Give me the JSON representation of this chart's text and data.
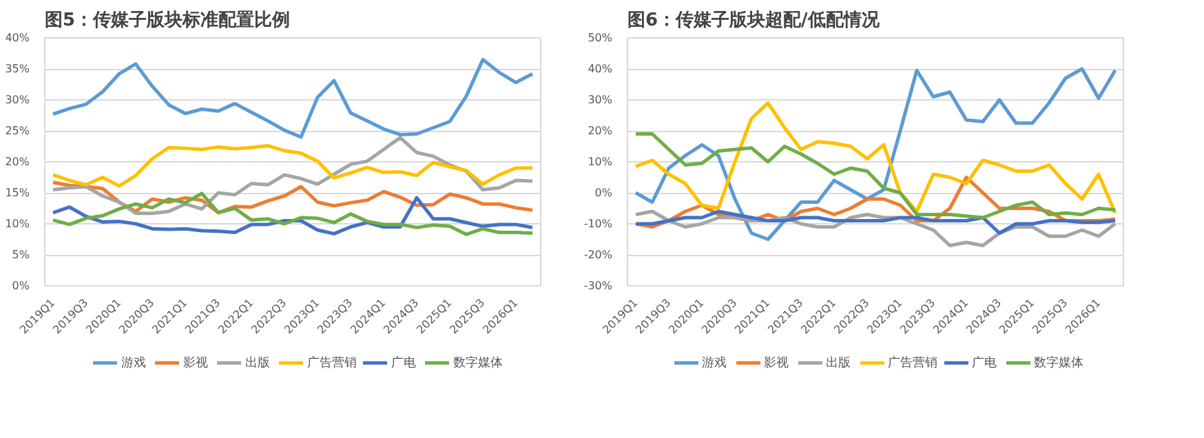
{
  "chart_data": [
    {
      "type": "line",
      "title": "图5：传媒子版块标准配置比例",
      "categories": [
        "2019Q1",
        null,
        "2019Q3",
        null,
        "2020Q1",
        null,
        "2020Q3",
        null,
        "2021Q1",
        null,
        "2021Q3",
        null,
        "2022Q1",
        null,
        "2022Q3",
        null,
        "2023Q1",
        null,
        "2023Q3",
        null,
        "2024Q1",
        null,
        "2024Q3",
        null,
        "2025Q1",
        null,
        "2025Q3",
        null,
        "2026Q1",
        null
      ],
      "series": [
        {
          "name": "游戏",
          "color": "#5b9bd5",
          "values": [
            27.7,
            28.6,
            29.3,
            31.3,
            34.2,
            35.8,
            32.2,
            29.2,
            27.8,
            28.5,
            28.2,
            29.4,
            28.0,
            26.6,
            25.1,
            24.0,
            30.4,
            33.1,
            27.9,
            26.6,
            25.3,
            24.4,
            24.5,
            25.5,
            26.5,
            30.6,
            36.5,
            34.4,
            32.8,
            34.2
          ]
        },
        {
          "name": "影视",
          "color": "#ed7d31",
          "values": [
            16.7,
            16.2,
            16.0,
            15.7,
            13.5,
            12.0,
            14.0,
            13.5,
            14.2,
            13.8,
            11.8,
            12.8,
            12.7,
            13.7,
            14.5,
            16.0,
            13.5,
            12.9,
            13.4,
            13.8,
            15.2,
            14.3,
            13.0,
            13.1,
            14.8,
            14.2,
            13.2,
            13.2,
            12.6,
            12.2
          ]
        },
        {
          "name": "出版",
          "color": "#a5a5a5",
          "values": [
            15.5,
            15.8,
            16.0,
            14.5,
            13.5,
            11.7,
            11.7,
            12.0,
            13.2,
            12.4,
            15.0,
            14.7,
            16.5,
            16.3,
            17.9,
            17.3,
            16.4,
            18.0,
            19.6,
            20.1,
            22.0,
            23.9,
            21.5,
            20.9,
            19.5,
            18.5,
            15.5,
            15.8,
            17.0,
            16.9
          ]
        },
        {
          "name": "广告营销",
          "color": "#ffc000",
          "values": [
            17.9,
            17.0,
            16.3,
            17.5,
            16.1,
            17.8,
            20.5,
            22.3,
            22.2,
            22.0,
            22.4,
            22.1,
            22.3,
            22.6,
            21.8,
            21.4,
            20.1,
            17.4,
            18.2,
            19.1,
            18.3,
            18.4,
            17.8,
            19.9,
            19.2,
            18.6,
            16.4,
            17.9,
            19.0,
            19.0
          ]
        },
        {
          "name": "广电",
          "color": "#4472c4",
          "values": [
            11.8,
            12.7,
            11.2,
            10.3,
            10.4,
            10.0,
            9.2,
            9.1,
            9.2,
            8.9,
            8.8,
            8.6,
            9.9,
            9.9,
            10.5,
            10.5,
            9.0,
            8.4,
            9.5,
            10.2,
            9.5,
            9.5,
            14.2,
            10.8,
            10.8,
            10.2,
            9.6,
            9.9,
            9.9,
            9.4
          ]
        },
        {
          "name": "数字媒体",
          "color": "#70ad47",
          "values": [
            10.6,
            9.9,
            10.9,
            11.3,
            12.4,
            13.2,
            12.6,
            14.0,
            13.4,
            14.9,
            11.8,
            12.5,
            10.6,
            10.8,
            10.0,
            11.0,
            10.9,
            10.2,
            11.6,
            10.4,
            9.9,
            9.9,
            9.4,
            9.8,
            9.6,
            8.3,
            9.2,
            8.6,
            8.6,
            8.5
          ]
        }
      ],
      "ylim": [
        0,
        40
      ],
      "yticks": [
        {
          "value": 0,
          "label": "0%"
        },
        {
          "value": 5,
          "label": "5%"
        },
        {
          "value": 10,
          "label": "10%"
        },
        {
          "value": 15,
          "label": "15%"
        },
        {
          "value": 20,
          "label": "20%"
        },
        {
          "value": 25,
          "label": "25%"
        },
        {
          "value": 30,
          "label": "30%"
        },
        {
          "value": 35,
          "label": "35%"
        },
        {
          "value": 40,
          "label": "40%"
        }
      ],
      "grid": "y",
      "legend": "bottom"
    },
    {
      "type": "line",
      "title": "图6：传媒子版块超配/低配情况",
      "categories": [
        "2019Q1",
        null,
        "2019Q3",
        null,
        "2020Q1",
        null,
        "2020Q3",
        null,
        "2021Q1",
        null,
        "2021Q3",
        null,
        "2022Q1",
        null,
        "2022Q3",
        null,
        "2023Q1",
        null,
        "2023Q3",
        null,
        "2024Q1",
        null,
        "2024Q3",
        null,
        "2025Q1",
        null,
        "2025Q3",
        null,
        "2026Q1",
        null
      ],
      "series": [
        {
          "name": "游戏",
          "color": "#5b9bd5",
          "values": [
            0,
            -3,
            8,
            12,
            15.5,
            12,
            -2,
            -13,
            -15,
            -9,
            -3,
            -3,
            4,
            1,
            -2,
            1,
            20,
            39.5,
            31,
            32.5,
            23.5,
            23,
            30,
            22.5,
            22.5,
            29,
            37,
            40,
            30.5,
            39.5
          ]
        },
        {
          "name": "影视",
          "color": "#ed7d31",
          "values": [
            -10,
            -11,
            -9,
            -6,
            -4,
            -7,
            -8,
            -9,
            -7,
            -9,
            -6,
            -5,
            -7,
            -5,
            -2,
            -2,
            -4,
            -9,
            -9,
            -5,
            5,
            0,
            -5,
            -5,
            -5,
            -6,
            -9,
            -9,
            -9,
            -8.5
          ]
        },
        {
          "name": "出版",
          "color": "#a5a5a5",
          "values": [
            -7,
            -6,
            -9,
            -11,
            -10,
            -8,
            -8,
            -9,
            -9,
            -8,
            -10,
            -11,
            -11,
            -8,
            -7,
            -8,
            -8,
            -10,
            -12,
            -17,
            -16,
            -17,
            -13,
            -11,
            -11,
            -14,
            -14,
            -12,
            -14,
            -10
          ]
        },
        {
          "name": "广告营销",
          "color": "#ffc000",
          "values": [
            8.5,
            10.5,
            6,
            3,
            -4,
            -5,
            10,
            24,
            29,
            21,
            14,
            16.5,
            16,
            15,
            11,
            15.5,
            0,
            -6,
            6,
            5,
            3,
            10.5,
            9,
            7,
            7,
            9,
            3,
            -2,
            6,
            -6.5
          ]
        },
        {
          "name": "广电",
          "color": "#4472c4",
          "values": [
            -10,
            -10,
            -9,
            -8,
            -8,
            -6,
            -7,
            -8,
            -9,
            -9,
            -8,
            -8,
            -9,
            -9,
            -9,
            -9,
            -8,
            -8,
            -9,
            -9,
            -9,
            -8,
            -13,
            -10,
            -10,
            -9,
            -9,
            -9.5,
            -9.5,
            -9
          ]
        },
        {
          "name": "数字媒体",
          "color": "#70ad47",
          "values": [
            19,
            19,
            14,
            9,
            9.5,
            13.5,
            14,
            14.5,
            10,
            15,
            12.5,
            9.5,
            6,
            8,
            7,
            1.5,
            0,
            -7,
            -7,
            -7,
            -7.5,
            -8,
            -6,
            -4,
            -3,
            -7,
            -6.5,
            -7,
            -5,
            -5.5
          ]
        }
      ],
      "ylim": [
        -30,
        50
      ],
      "yticks": [
        {
          "value": -30,
          "label": "-30%"
        },
        {
          "value": -20,
          "label": "-20%"
        },
        {
          "value": -10,
          "label": "-10%"
        },
        {
          "value": 0,
          "label": "0%"
        },
        {
          "value": 10,
          "label": "10%"
        },
        {
          "value": 20,
          "label": "20%"
        },
        {
          "value": 30,
          "label": "30%"
        },
        {
          "value": 40,
          "label": "40%"
        },
        {
          "value": 50,
          "label": "50%"
        }
      ],
      "grid": "y",
      "legend": "bottom"
    }
  ]
}
